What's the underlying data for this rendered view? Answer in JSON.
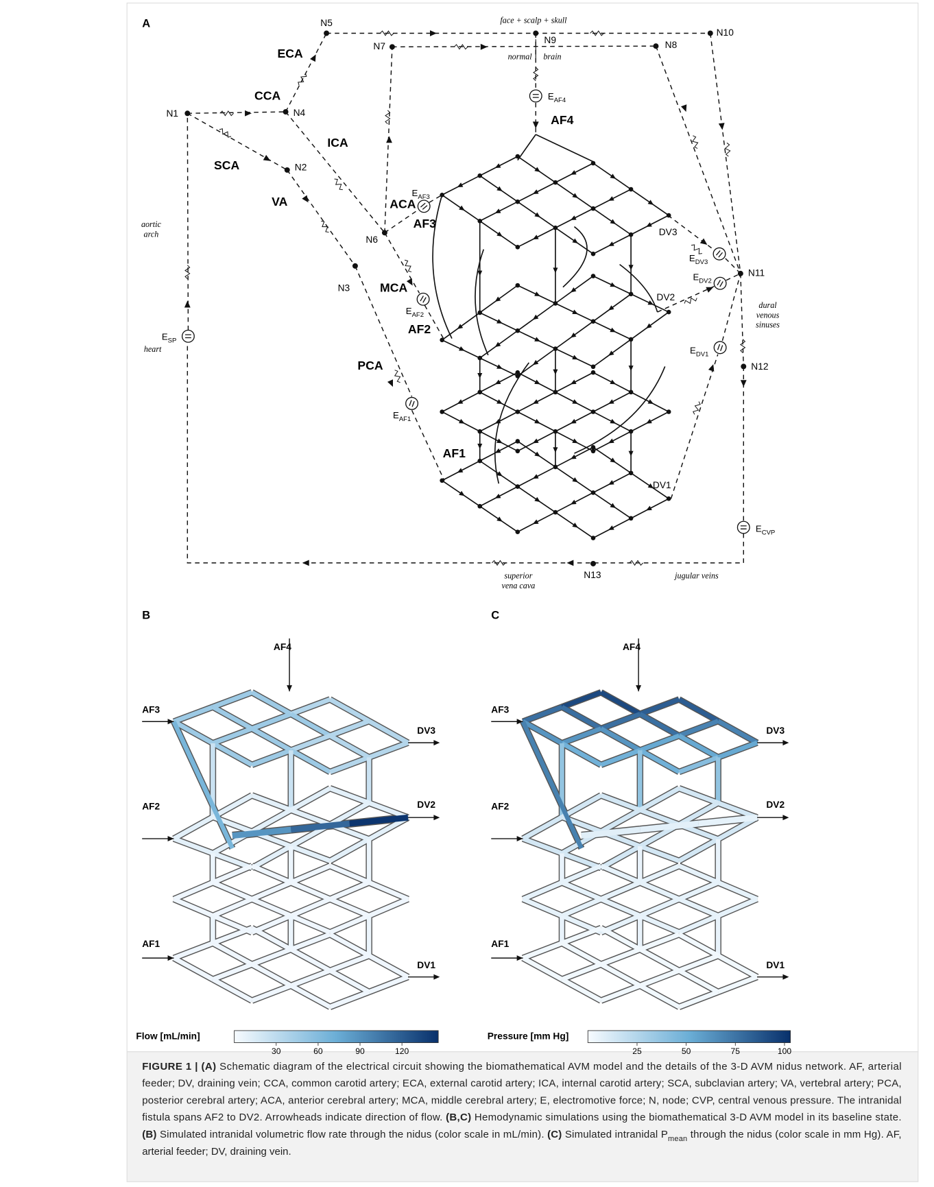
{
  "panel_a": {
    "label": "A",
    "nodes": [
      "N1",
      "N2",
      "N3",
      "N4",
      "N5",
      "N6",
      "N7",
      "N8",
      "N9",
      "N10",
      "N11",
      "N12",
      "N13"
    ],
    "arteries": [
      "ECA",
      "CCA",
      "ICA",
      "SCA",
      "VA",
      "ACA",
      "MCA",
      "PCA"
    ],
    "feeders": [
      "AF4",
      "AF3",
      "AF2",
      "AF1"
    ],
    "veins": [
      "DV3",
      "DV2",
      "DV1"
    ],
    "sources": [
      {
        "base": "E",
        "sub": "AF4"
      },
      {
        "base": "E",
        "sub": "AF3"
      },
      {
        "base": "E",
        "sub": "AF2"
      },
      {
        "base": "E",
        "sub": "AF1"
      },
      {
        "base": "E",
        "sub": "DV3"
      },
      {
        "base": "E",
        "sub": "DV2"
      },
      {
        "base": "E",
        "sub": "DV1"
      },
      {
        "base": "E",
        "sub": "SP"
      },
      {
        "base": "E",
        "sub": "CVP"
      }
    ],
    "annotations": [
      "face + scalp + skull",
      "normal",
      "brain",
      "aortic",
      "arch",
      "heart",
      "dural",
      "venous",
      "sinuses",
      "superior",
      "vena cava",
      "jugular veins"
    ]
  },
  "panel_b": {
    "label": "B",
    "inlets": [
      "AF4",
      "AF3",
      "AF2",
      "AF1"
    ],
    "outlets": [
      "DV3",
      "DV2",
      "DV1"
    ],
    "colorbar": {
      "label": "Flow [mL/min]",
      "lim": [
        0,
        146
      ],
      "ticks": [
        30,
        60,
        90,
        120
      ],
      "colors": [
        "#f7fbff",
        "#6baed6",
        "#08306b"
      ]
    }
  },
  "panel_c": {
    "label": "C",
    "inlets": [
      "AF4",
      "AF3",
      "AF2",
      "AF1"
    ],
    "outlets": [
      "DV3",
      "DV2",
      "DV1"
    ],
    "colorbar": {
      "label": "Pressure [mm Hg]",
      "lim": [
        0,
        103
      ],
      "ticks": [
        25,
        50,
        75,
        100
      ],
      "colors": [
        "#f7fbff",
        "#6baed6",
        "#08306b"
      ]
    }
  },
  "caption": {
    "lines": [
      [
        "FIGURE 1 | (A)",
        " Schematic diagram of the electrical circuit showing the biomathematical AVM model and the details of the 3-D AVM nidus network. AF, arterial"
      ],
      [
        "feeder; DV, draining vein; CCA, common carotid artery; ECA, external carotid artery; ICA, internal carotid artery; SCA, subclavian artery; VA, vertebral artery; PCA,"
      ],
      [
        "posterior cerebral artery; ACA, anterior cerebral artery; MCA, middle cerebral artery; E, electromotive force; N, node; CVP, central venous pressure. The intranidal"
      ],
      [
        "fistula spans AF2 to DV2. Arrowheads indicate direction of flow. ",
        "(B,C)",
        " Hemodynamic simulations using the biomathematical 3-D AVM model in its baseline state."
      ],
      [
        "(B)",
        " Simulated intranidal volumetric flow rate through the nidus (color scale in mL/min). ",
        "(C)",
        " Simulated intranidal P",
        "mean",
        " through the nidus (color scale in mm Hg). AF,"
      ],
      [
        "arterial feeder; DV, draining vein."
      ]
    ]
  }
}
